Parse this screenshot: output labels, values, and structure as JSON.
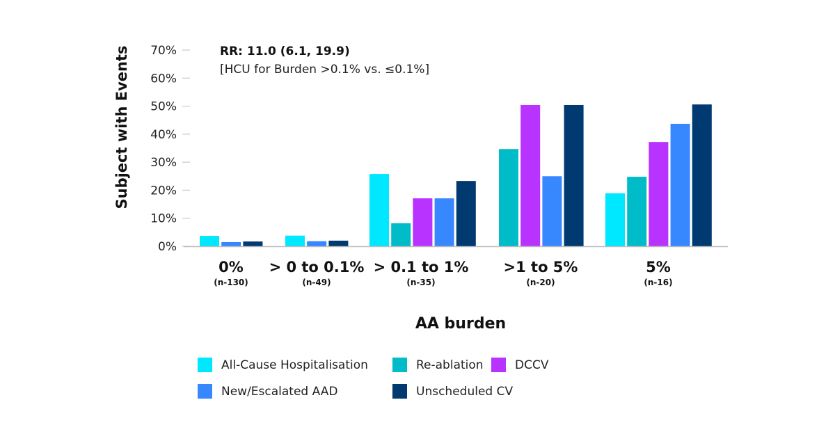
{
  "chart_data": {
    "type": "bar",
    "ylabel": "Subject with Events",
    "xlabel": "AA burden",
    "ylim": [
      0,
      70
    ],
    "yticks": [
      "0%",
      "10%",
      "20%",
      "30%",
      "40%",
      "50%",
      "60%",
      "70%"
    ],
    "annotation": {
      "line1": "RR: 11.0 (6.1, 19.9)",
      "line2": "[HCU for Burden >0.1% vs. ≤0.1%]"
    },
    "categories": [
      "0%",
      "> 0 to 0.1%",
      "> 0.1 to 1%",
      ">1 to 5%",
      "5%"
    ],
    "category_n": [
      "(n-130)",
      "(n-49)",
      "(n-35)",
      "(n-20)",
      "(n-16)"
    ],
    "series": [
      {
        "name": "All-Cause Hospitalisation",
        "color": "#00e8ff",
        "values": [
          3.7,
          3.8,
          25.8,
          null,
          18.9
        ]
      },
      {
        "name": "Re-ablation",
        "color": "#00bcc9",
        "values": [
          null,
          null,
          8.2,
          34.7,
          24.8
        ]
      },
      {
        "name": "DCCV",
        "color": "#b833ff",
        "values": [
          null,
          null,
          17.1,
          50.4,
          37.2
        ]
      },
      {
        "name": "New/Escalated AAD",
        "color": "#3787ff",
        "values": [
          1.5,
          1.8,
          17.1,
          25.0,
          43.7
        ]
      },
      {
        "name": "Unscheduled CV",
        "color": "#003a70",
        "values": [
          1.7,
          2.0,
          23.3,
          50.4,
          50.6
        ]
      }
    ],
    "grid": false,
    "legend_position": "bottom"
  }
}
